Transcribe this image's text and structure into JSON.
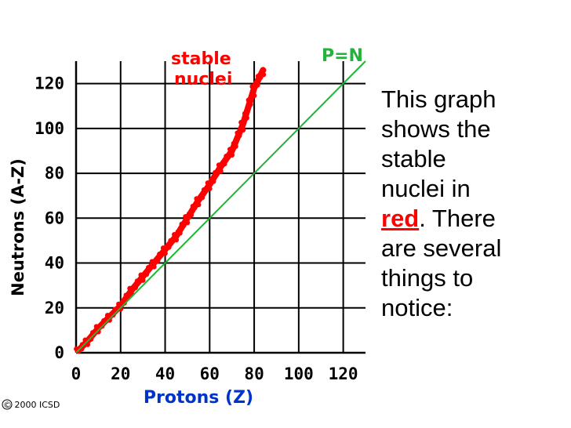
{
  "chart_data": {
    "type": "scatter",
    "xlabel": "Protons  (Z)",
    "ylabel": "Neutrons  (A-Z)",
    "xlim": [
      0,
      130
    ],
    "ylim": [
      0,
      130
    ],
    "x_ticks": [
      0,
      20,
      40,
      60,
      80,
      100,
      120
    ],
    "y_ticks": [
      0,
      20,
      40,
      60,
      80,
      100,
      120
    ],
    "x_tick_labels": [
      "0",
      "20",
      "40",
      "60",
      "80",
      100,
      120
    ],
    "y_tick_labels": [
      "0",
      "20",
      "40",
      "60",
      "80",
      100,
      120
    ],
    "grid": true,
    "series": [
      {
        "name": "stable nuclei",
        "color": "#ff0000",
        "band": [
          [
            1,
            1
          ],
          [
            5,
            5
          ],
          [
            10,
            11
          ],
          [
            15,
            16
          ],
          [
            20,
            21
          ],
          [
            25,
            28
          ],
          [
            30,
            34
          ],
          [
            35,
            40
          ],
          [
            40,
            46
          ],
          [
            45,
            52
          ],
          [
            50,
            60
          ],
          [
            55,
            68
          ],
          [
            60,
            75
          ],
          [
            65,
            83
          ],
          [
            70,
            90
          ],
          [
            75,
            102
          ],
          [
            80,
            118
          ],
          [
            84,
            126
          ]
        ]
      },
      {
        "name": "P=N",
        "color": "#22b33a",
        "points": [
          [
            0,
            0
          ],
          [
            130,
            130
          ]
        ]
      }
    ],
    "annotations": {
      "stable_line1": "stable",
      "stable_line2": "nuclei",
      "pn": "P=N"
    }
  },
  "caption": {
    "line1": "This graph",
    "line2": "shows the",
    "line3": "stable",
    "line4": "nuclei in",
    "red_word": "red",
    "line5_rest": ".  There",
    "line6": "are several",
    "line7": "things to",
    "line8": "notice:"
  },
  "credit": "© 2000 ICSD",
  "colors": {
    "axis_label_blue": "#0033cc",
    "stable_red": "#ff0000",
    "pn_green": "#22b33a",
    "grid": "#000000"
  }
}
